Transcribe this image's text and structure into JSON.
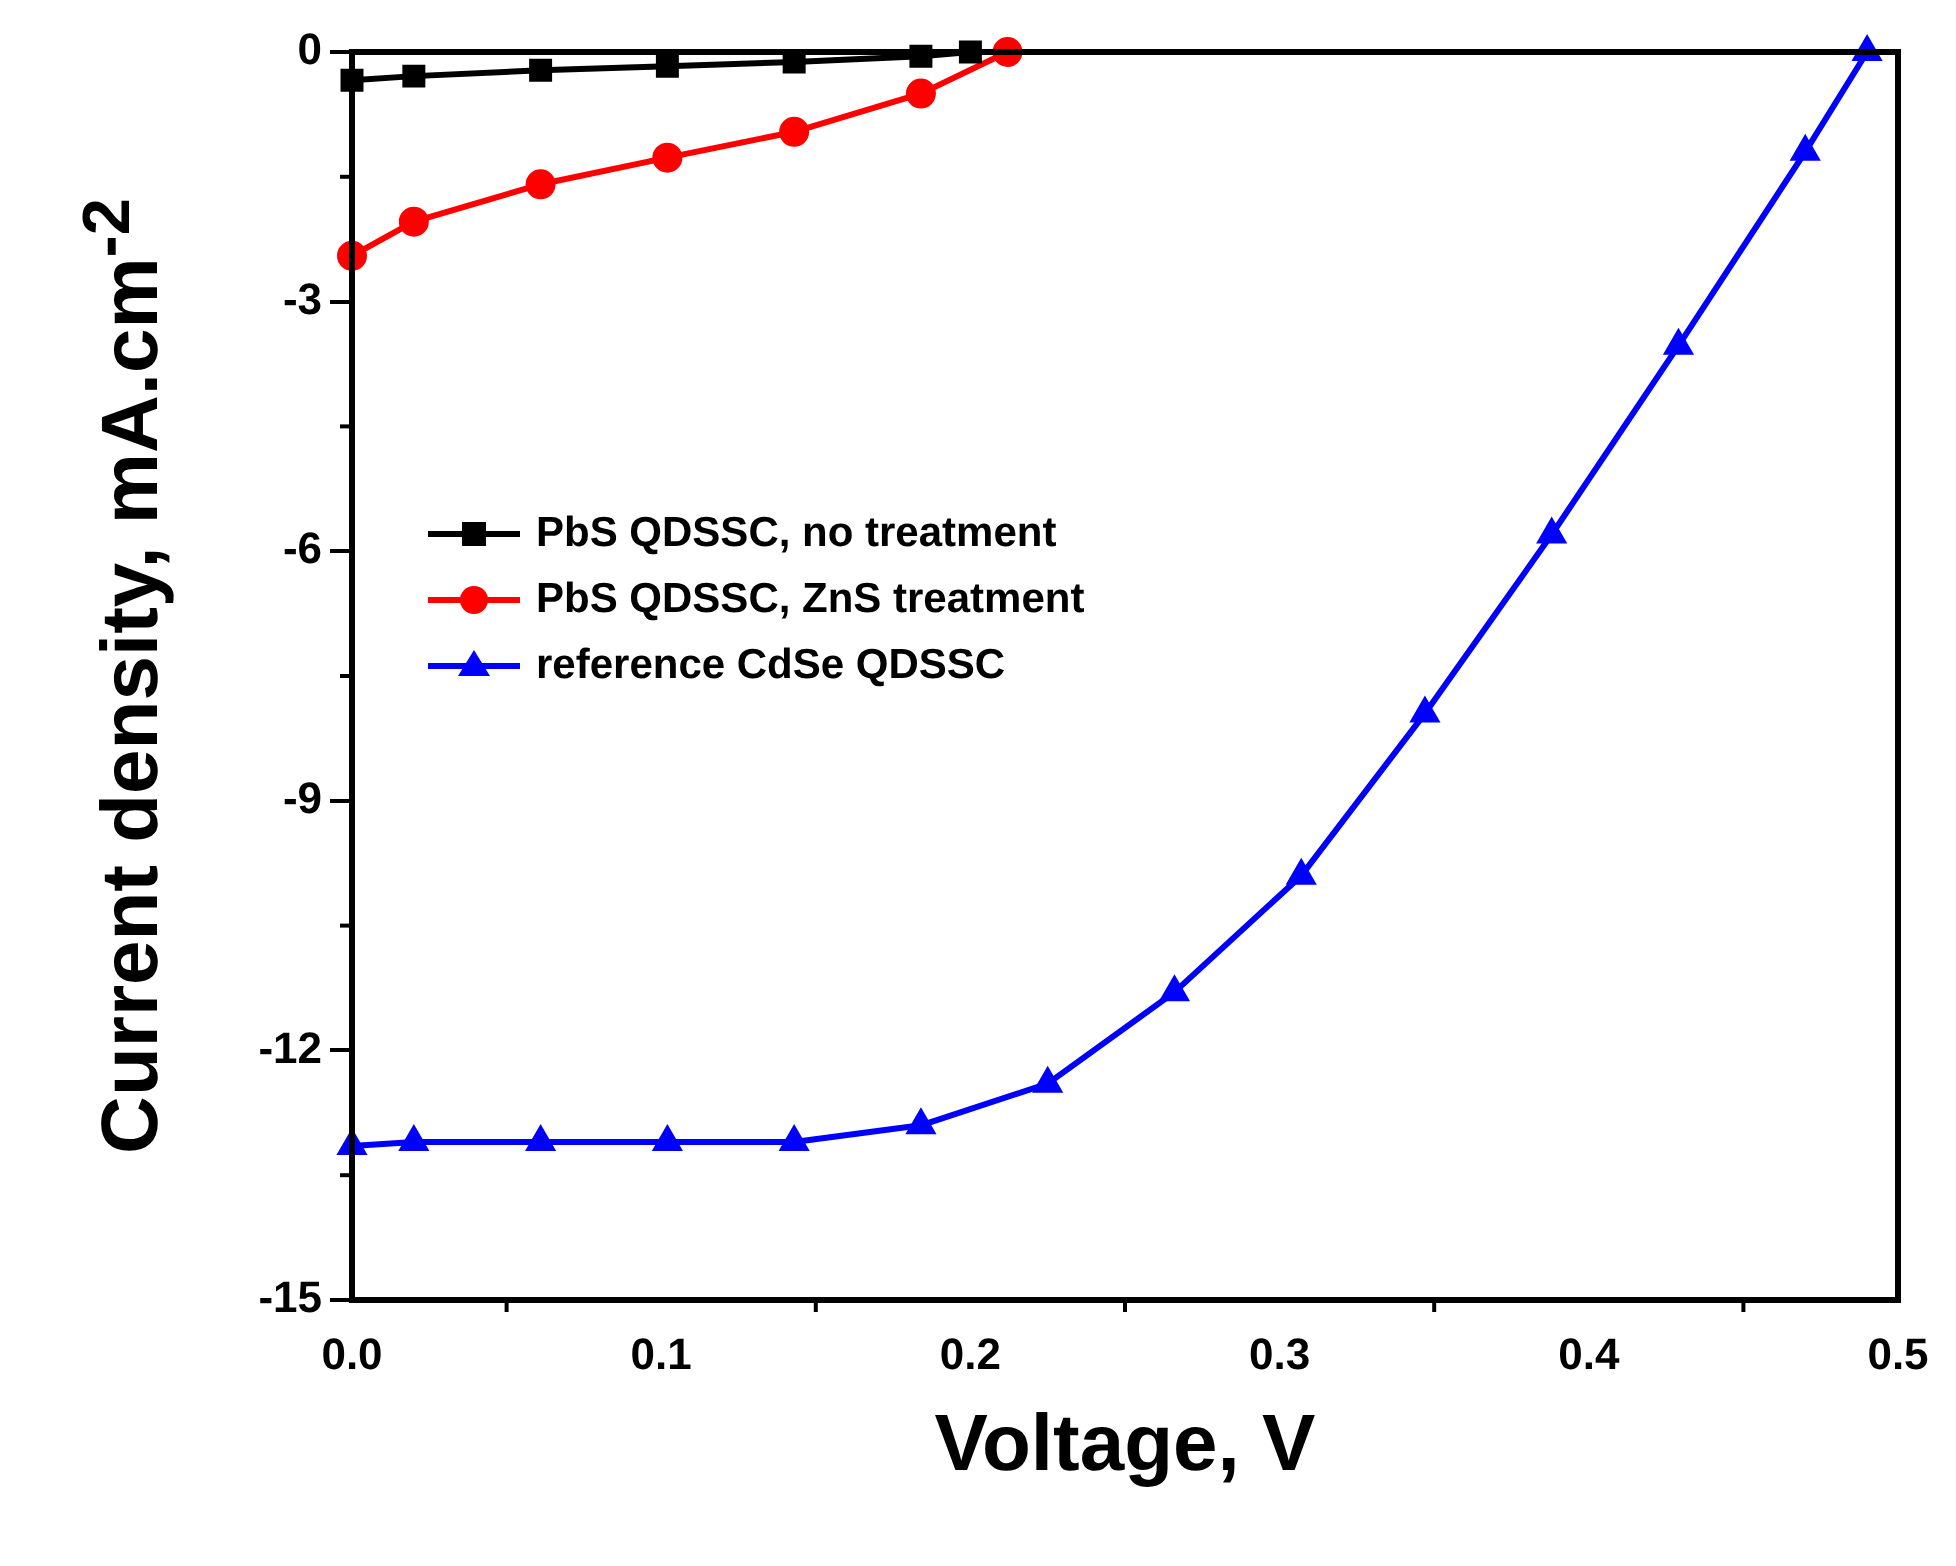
{
  "chart_data": {
    "type": "line",
    "xlabel": "Voltage, V",
    "ylabel": "Current density, mA.cm$^{-2}$",
    "xlim": [
      0,
      0.5
    ],
    "xticks": [
      {
        "value": 0,
        "label": "0.0"
      },
      0.1,
      0.2,
      0.3,
      0.4,
      0.5
    ],
    "ylim": [
      -15,
      0
    ],
    "yticks": [
      -15,
      -12,
      -9,
      -6,
      -3,
      0
    ],
    "legend": "left",
    "grid": false,
    "series": [
      {
        "name": "PbS QDSSC, no treatment",
        "color": "#000000",
        "marker": "square",
        "x": [
          0,
          0.02,
          0.061,
          0.102,
          0.143,
          0.184,
          0.2
        ],
        "values": [
          -0.34,
          -0.29,
          -0.22,
          -0.17,
          -0.12,
          -0.05,
          0
        ]
      },
      {
        "name": "PbS QDSSC, ZnS treatment",
        "color": "#ff0000",
        "marker": "circle",
        "x": [
          0,
          0.02,
          0.061,
          0.102,
          0.143,
          0.184,
          0.212
        ],
        "values": [
          -2.45,
          -2.04,
          -1.59,
          -1.27,
          -0.96,
          -0.5,
          0
        ]
      },
      {
        "name": "reference CdSe QDSSC",
        "color": "#0000ff",
        "marker": "triangle",
        "x": [
          0,
          0.02,
          0.061,
          0.102,
          0.143,
          0.184,
          0.225,
          0.266,
          0.307,
          0.347,
          0.388,
          0.429,
          0.47,
          0.49
        ],
        "values": [
          -13.15,
          -13.1,
          -13.1,
          -13.1,
          -13.1,
          -12.9,
          -12.4,
          -11.3,
          -9.9,
          -7.95,
          -5.8,
          -3.53,
          -1.2,
          0
        ]
      }
    ]
  }
}
